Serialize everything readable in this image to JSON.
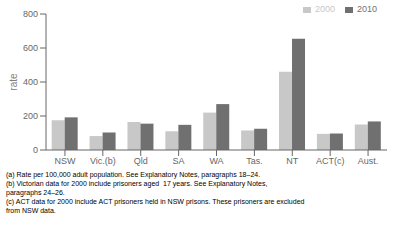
{
  "chart_data": {
    "type": "bar",
    "categories": [
      "NSW",
      "Vic.(b)",
      "Qld",
      "SA",
      "WA",
      "Tas.",
      "NT",
      "ACT(c)",
      "Aust."
    ],
    "series": [
      {
        "name": "2000",
        "color": "#c8c8c8",
        "values": [
          175,
          82,
          165,
          110,
          220,
          115,
          460,
          95,
          150
        ]
      },
      {
        "name": "2010",
        "color": "#707070",
        "values": [
          192,
          103,
          155,
          148,
          270,
          125,
          655,
          97,
          168
        ]
      }
    ],
    "ylabel": "rate",
    "ylim": [
      0,
      800
    ],
    "yticks": [
      0,
      200,
      400,
      600,
      800
    ],
    "legend": "upper right",
    "grid": false,
    "annotations": [
      "(a) Rate per 100,000 adult population. See Explanatory Notes, paragraphs 18–24.",
      "(b) Victorian data for 2000 include prisoners aged  17 years. See Explanatory Notes,",
      "paragraphs 24–26.",
      "(c) ACT data for 2000 include ACT prisoners held in NSW prisons. These prisoners are excluded",
      "from NSW data."
    ]
  }
}
